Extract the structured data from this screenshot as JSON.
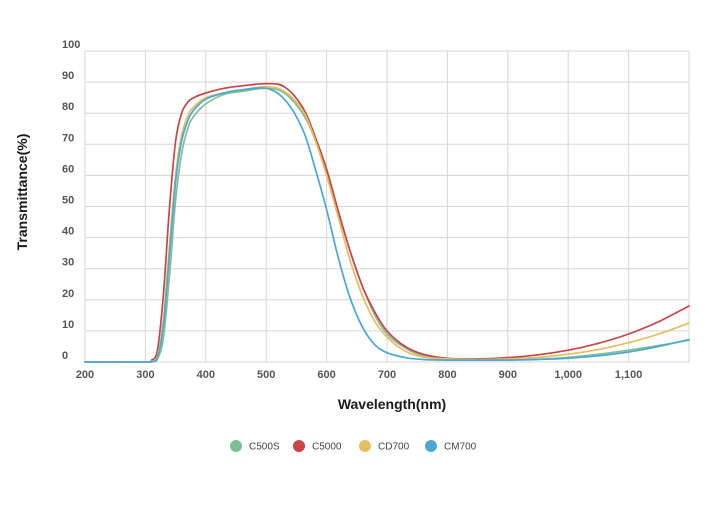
{
  "chart_data": {
    "type": "line",
    "xlabel": "Wavelength(nm)",
    "ylabel": "Transmittance(%)",
    "xlim": [
      200,
      1200
    ],
    "ylim": [
      0,
      100
    ],
    "x_ticks": [
      "200",
      "300",
      "400",
      "500",
      "600",
      "700",
      "800",
      "900",
      "1,000",
      "1,100"
    ],
    "y_ticks": [
      "0",
      "10",
      "20",
      "30",
      "40",
      "50",
      "60",
      "70",
      "80",
      "90",
      "100"
    ],
    "grid": true,
    "legend_position": "bottom-center",
    "series": [
      {
        "name": "C500S",
        "color": "#7fbf97",
        "x": [
          200,
          300,
          310,
          320,
          330,
          340,
          350,
          360,
          370,
          380,
          400,
          430,
          460,
          500,
          530,
          560,
          580,
          600,
          620,
          640,
          660,
          680,
          700,
          730,
          760,
          800,
          850,
          900,
          950,
          1000,
          1050,
          1100,
          1150,
          1200
        ],
        "y": [
          0,
          0,
          0.2,
          1,
          8,
          28,
          52,
          67,
          75,
          79,
          83,
          86,
          87,
          88,
          86.5,
          80,
          72,
          61,
          48,
          35,
          24,
          15,
          9,
          4.5,
          2,
          1,
          0.7,
          0.7,
          0.9,
          1.5,
          2.5,
          3.8,
          5.3,
          7
        ]
      },
      {
        "name": "C5000",
        "color": "#c94449",
        "x": [
          200,
          300,
          310,
          320,
          330,
          340,
          350,
          360,
          370,
          380,
          400,
          430,
          460,
          500,
          530,
          560,
          580,
          600,
          620,
          640,
          660,
          680,
          700,
          730,
          760,
          800,
          850,
          900,
          950,
          1000,
          1050,
          1100,
          1150,
          1200
        ],
        "y": [
          0,
          0,
          0.5,
          4,
          22,
          50,
          71,
          80,
          83.5,
          85,
          86.5,
          88,
          88.8,
          89.5,
          88.5,
          82,
          73,
          62,
          48,
          35,
          24,
          16,
          10,
          5,
          2.5,
          1.2,
          1,
          1.4,
          2.3,
          3.8,
          6,
          9,
          13,
          18
        ]
      },
      {
        "name": "CD700",
        "color": "#e5bd62",
        "x": [
          200,
          300,
          310,
          320,
          330,
          340,
          350,
          360,
          370,
          380,
          400,
          430,
          460,
          500,
          530,
          560,
          580,
          600,
          620,
          640,
          660,
          680,
          700,
          730,
          760,
          800,
          850,
          900,
          950,
          1000,
          1050,
          1100,
          1150,
          1200
        ],
        "y": [
          0,
          0,
          0.3,
          2,
          14,
          38,
          60,
          73,
          79,
          82,
          85,
          86.5,
          87.5,
          88.5,
          87,
          81,
          72,
          60,
          46,
          32,
          21,
          13,
          8,
          3.5,
          1.6,
          1,
          0.8,
          1,
          1.5,
          2.5,
          4,
          6.2,
          9,
          12.5
        ]
      },
      {
        "name": "CM700",
        "color": "#4aa8d3",
        "x": [
          200,
          300,
          310,
          320,
          330,
          340,
          350,
          360,
          370,
          380,
          400,
          430,
          460,
          500,
          530,
          560,
          580,
          600,
          620,
          640,
          660,
          680,
          700,
          730,
          760,
          800,
          850,
          900,
          950,
          1000,
          1050,
          1100,
          1150,
          1200
        ],
        "y": [
          0,
          0,
          0.2,
          1.5,
          12,
          35,
          58,
          71,
          77.5,
          81,
          84.5,
          86.5,
          87.5,
          88,
          84.5,
          75,
          63,
          49,
          33,
          20,
          11,
          5.5,
          3,
          1.4,
          0.8,
          0.6,
          0.6,
          0.6,
          0.8,
          1.2,
          2,
          3.2,
          5,
          7.2
        ]
      }
    ]
  }
}
